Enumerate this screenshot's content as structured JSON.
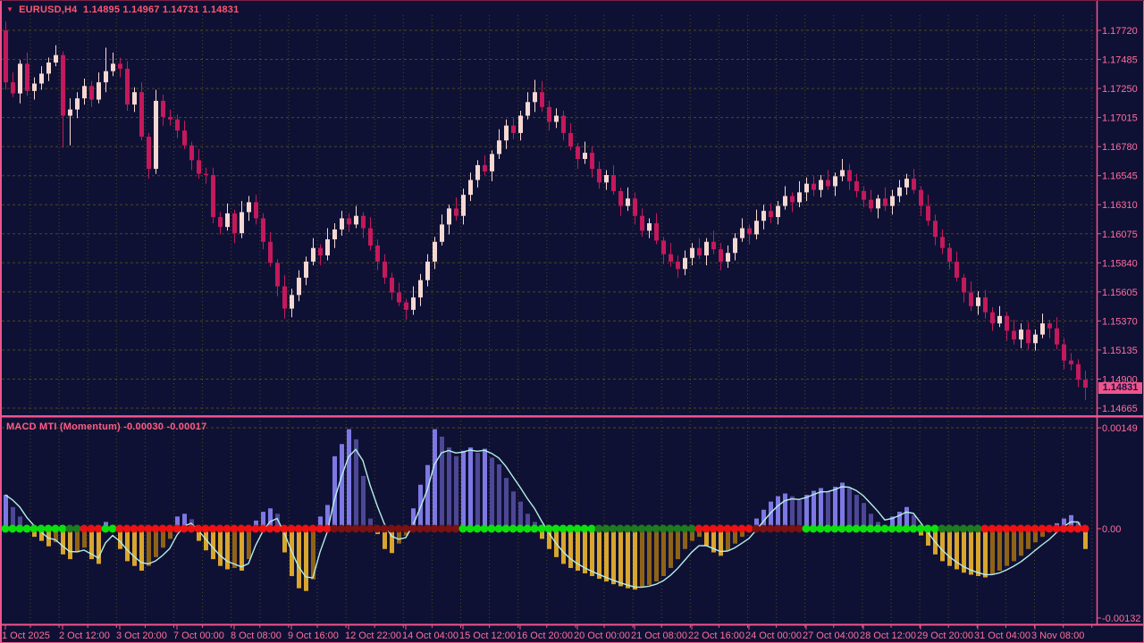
{
  "header": {
    "title": "EURUSD,H4  1.14895 1.14967 1.14731 1.14831"
  },
  "indicator": {
    "label": "MACD MTI (Momentum) -0.00030 -0.00017"
  },
  "price_axis": {
    "current_price": "1.14831",
    "ticks": [
      "1.17720",
      "1.17485",
      "1.17250",
      "1.17015",
      "1.16780",
      "1.16545",
      "1.16310",
      "1.16075",
      "1.15840",
      "1.15605",
      "1.15370",
      "1.15135",
      "1.14900",
      "1.14665"
    ]
  },
  "time_axis": {
    "labels": [
      "1 Oct 2025",
      "2 Oct 12:00",
      "3 Oct 20:00",
      "7 Oct 00:00",
      "8 Oct 08:00",
      "9 Oct 16:00",
      "12 Oct 22:00",
      "14 Oct 04:00",
      "15 Oct 12:00",
      "16 Oct 20:00",
      "20 Oct 00:00",
      "21 Oct 08:00",
      "22 Oct 16:00",
      "24 Oct 00:00",
      "27 Oct 04:00",
      "28 Oct 12:00",
      "29 Oct 20:00",
      "31 Oct 04:00",
      "3 Nov 08:00"
    ],
    "candles_per_label": 8
  },
  "colors": {
    "background": "#0f1134",
    "frame_pink": "#f0548c",
    "grid": "#4c471f",
    "axis_text": "#ff6e9e",
    "title_text": "#ff5670",
    "bull_candle": "#f6d8d2",
    "bear_candle": "#c4195c",
    "hist_up": "#7d78e4",
    "hist_up_dark": "#4d4794",
    "hist_down": "#d8a52d",
    "hist_down_dark": "#8f6317",
    "signal_line": "#b5efe6",
    "dot_lime": "#0ce00c",
    "dot_green": "#1e7a1e",
    "dot_red": "#ee1111",
    "dot_maroon": "#7c1111",
    "badge_bg": "#f0548c",
    "badge_text": "#16123c"
  },
  "chart_data": [
    {
      "type": "candlestick",
      "symbol": "EURUSD",
      "timeframe": "H4",
      "title": "EURUSD,H4",
      "last_ohlc": {
        "open": 1.14895,
        "high": 1.14967,
        "low": 1.14731,
        "close": 1.14831
      },
      "ylim": [
        1.1448,
        1.1781
      ],
      "y_ticks": [
        1.1772,
        1.17485,
        1.1725,
        1.17015,
        1.1678,
        1.16545,
        1.1631,
        1.16075,
        1.1584,
        1.15605,
        1.1537,
        1.15135,
        1.149,
        1.14665
      ],
      "first_open": 1.1772,
      "closes": [
        1.173,
        1.1721,
        1.1745,
        1.1723,
        1.1729,
        1.1737,
        1.1746,
        1.1752,
        1.1703,
        1.1708,
        1.1717,
        1.1727,
        1.1716,
        1.173,
        1.1739,
        1.1745,
        1.1741,
        1.1712,
        1.1722,
        1.1686,
        1.166,
        1.1715,
        1.1702,
        1.17,
        1.1691,
        1.1679,
        1.1667,
        1.1656,
        1.1655,
        1.1621,
        1.1613,
        1.1624,
        1.1608,
        1.1625,
        1.1633,
        1.162,
        1.1601,
        1.1584,
        1.1565,
        1.1547,
        1.1558,
        1.1572,
        1.1585,
        1.1596,
        1.159,
        1.1603,
        1.1611,
        1.162,
        1.1615,
        1.1622,
        1.1612,
        1.1598,
        1.1585,
        1.1572,
        1.156,
        1.1552,
        1.1546,
        1.1556,
        1.157,
        1.1585,
        1.1601,
        1.1615,
        1.1628,
        1.1622,
        1.1639,
        1.1651,
        1.1663,
        1.1658,
        1.1672,
        1.1683,
        1.1695,
        1.1689,
        1.1703,
        1.1714,
        1.1722,
        1.171,
        1.1698,
        1.1703,
        1.1689,
        1.1678,
        1.1668,
        1.1673,
        1.166,
        1.1649,
        1.1655,
        1.1642,
        1.163,
        1.1636,
        1.1622,
        1.161,
        1.1616,
        1.1602,
        1.1591,
        1.1585,
        1.1579,
        1.1588,
        1.1596,
        1.159,
        1.1601,
        1.1595,
        1.1585,
        1.1592,
        1.1604,
        1.1612,
        1.1607,
        1.1618,
        1.1626,
        1.1621,
        1.163,
        1.1638,
        1.1633,
        1.1641,
        1.1648,
        1.1643,
        1.1651,
        1.1646,
        1.1654,
        1.1659,
        1.165,
        1.1642,
        1.1635,
        1.1628,
        1.1636,
        1.163,
        1.1638,
        1.1645,
        1.1652,
        1.1643,
        1.163,
        1.1618,
        1.1605,
        1.1596,
        1.1585,
        1.1572,
        1.156,
        1.1549,
        1.1556,
        1.1544,
        1.1535,
        1.1541,
        1.1529,
        1.1522,
        1.153,
        1.1519,
        1.1526,
        1.1535,
        1.1531,
        1.1518,
        1.1505,
        1.1502,
        1.14895,
        1.14831
      ],
      "wick_pattern_high": [
        4,
        8,
        3,
        9,
        5,
        6
      ],
      "wick_pattern_low": [
        6,
        3,
        8,
        4,
        7,
        5
      ],
      "wick_unit": 0.0001,
      "wick_overrides": {
        "0": {
          "high": 1.1779
        },
        "8": {
          "low": 1.1677
        },
        "9": {
          "low": 1.1679
        },
        "14": {
          "high": 1.1758
        },
        "39": {
          "low": 1.1539
        },
        "74": {
          "high": 1.1732
        },
        "151": {
          "high": 1.14967,
          "low": 1.14731
        }
      }
    },
    {
      "type": "bar",
      "title": "MACD MTI (Momentum)",
      "current_values": [
        -0.0003,
        -0.00017
      ],
      "y_ticks": [
        0.00149,
        0.0,
        -0.00132
      ],
      "y_tick_labels": [
        "0.00149",
        "0.00",
        "-0.00132"
      ],
      "value_scale": 1e-05,
      "values": [
        50,
        32,
        18,
        -5,
        -12,
        -18,
        -26,
        -20,
        -38,
        -45,
        -35,
        -28,
        -45,
        -52,
        10,
        5,
        -30,
        -48,
        -55,
        -62,
        -55,
        -42,
        -28,
        -15,
        18,
        22,
        14,
        -18,
        -32,
        -45,
        -55,
        -60,
        -58,
        -62,
        -45,
        12,
        25,
        30,
        22,
        -35,
        -70,
        -88,
        -92,
        -75,
        18,
        35,
        107,
        125,
        147,
        132,
        78,
        15,
        -8,
        -30,
        -36,
        -22,
        -10,
        30,
        65,
        94,
        147,
        136,
        120,
        107,
        115,
        120,
        112,
        118,
        105,
        95,
        75,
        55,
        40,
        22,
        10,
        -15,
        -30,
        -42,
        -52,
        -58,
        -62,
        -66,
        -70,
        -74,
        -78,
        -82,
        -85,
        -88,
        -90,
        -87,
        -83,
        -78,
        -70,
        -58,
        -45,
        -30,
        -18,
        -12,
        -25,
        -35,
        -40,
        -32,
        -22,
        -12,
        -5,
        15,
        28,
        40,
        48,
        52,
        48,
        42,
        50,
        56,
        60,
        55,
        62,
        68,
        60,
        50,
        38,
        22,
        10,
        -5,
        18,
        25,
        32,
        20,
        -10,
        -25,
        -38,
        -48,
        -55,
        -60,
        -65,
        -68,
        -70,
        -72,
        -68,
        -62,
        -55,
        -48,
        -40,
        -30,
        -20,
        -12,
        -5,
        8,
        15,
        20,
        10,
        -30
      ],
      "signal_smoothing_alpha": 0.42,
      "dot_runs": [
        [
          "lime",
          9
        ],
        [
          "green",
          2
        ],
        [
          "red",
          3
        ],
        [
          "lime",
          2
        ],
        [
          "red",
          30
        ],
        [
          "maroon",
          18
        ],
        [
          "lime",
          19
        ],
        [
          "green",
          14
        ],
        [
          "red",
          8
        ],
        [
          "maroon",
          7
        ],
        [
          "lime",
          19
        ],
        [
          "green",
          6
        ],
        [
          "red",
          15
        ]
      ]
    }
  ]
}
